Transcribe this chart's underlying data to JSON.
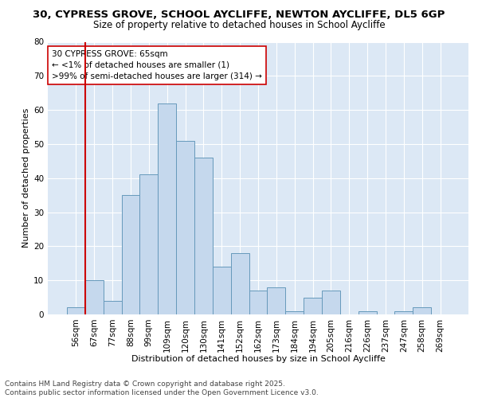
{
  "title_line1": "30, CYPRESS GROVE, SCHOOL AYCLIFFE, NEWTON AYCLIFFE, DL5 6GP",
  "title_line2": "Size of property relative to detached houses in School Aycliffe",
  "xlabel": "Distribution of detached houses by size in School Aycliffe",
  "ylabel": "Number of detached properties",
  "categories": [
    "56sqm",
    "67sqm",
    "77sqm",
    "88sqm",
    "99sqm",
    "109sqm",
    "120sqm",
    "130sqm",
    "141sqm",
    "152sqm",
    "162sqm",
    "173sqm",
    "184sqm",
    "194sqm",
    "205sqm",
    "216sqm",
    "226sqm",
    "237sqm",
    "247sqm",
    "258sqm",
    "269sqm"
  ],
  "values": [
    2,
    10,
    4,
    35,
    41,
    62,
    51,
    46,
    14,
    18,
    7,
    8,
    1,
    5,
    7,
    0,
    1,
    0,
    1,
    2,
    0
  ],
  "bar_color": "#c5d8ed",
  "bar_edge_color": "#6699bb",
  "vline_x": 1,
  "vline_color": "#cc0000",
  "annotation_text": "30 CYPRESS GROVE: 65sqm\n← <1% of detached houses are smaller (1)\n>99% of semi-detached houses are larger (314) →",
  "annotation_box_color": "white",
  "annotation_box_edge_color": "#cc0000",
  "ylim": [
    0,
    80
  ],
  "yticks": [
    0,
    10,
    20,
    30,
    40,
    50,
    60,
    70,
    80
  ],
  "fig_background_color": "#ffffff",
  "plot_background_color": "#dce8f5",
  "footer_line1": "Contains HM Land Registry data © Crown copyright and database right 2025.",
  "footer_line2": "Contains public sector information licensed under the Open Government Licence v3.0.",
  "grid_color": "#ffffff",
  "title_fontsize": 9.5,
  "subtitle_fontsize": 8.5,
  "axis_label_fontsize": 8,
  "tick_fontsize": 7.5,
  "annotation_fontsize": 7.5,
  "footer_fontsize": 6.5
}
